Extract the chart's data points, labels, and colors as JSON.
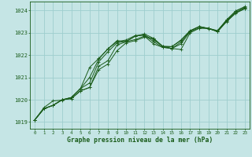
{
  "title": "Graphe pression niveau de la mer (hPa)",
  "background_color": "#c5e5e5",
  "grid_color": "#9ecece",
  "line_color": "#1a5c1a",
  "xlim": [
    -0.5,
    23.5
  ],
  "ylim": [
    1018.7,
    1024.4
  ],
  "yticks": [
    1019,
    1020,
    1021,
    1022,
    1023,
    1024
  ],
  "xticks": [
    0,
    1,
    2,
    3,
    4,
    5,
    6,
    7,
    8,
    9,
    10,
    11,
    12,
    13,
    14,
    15,
    16,
    17,
    18,
    19,
    20,
    21,
    22,
    23
  ],
  "series_smooth": [
    [
      1019.1,
      1019.6,
      1019.75,
      1020.0,
      1020.05,
      1020.4,
      1020.55,
      1021.35,
      1021.6,
      1022.2,
      1022.55,
      1022.65,
      1022.8,
      1022.75,
      1022.4,
      1022.3,
      1022.25,
      1023.0,
      1023.2,
      1023.2,
      1023.05,
      1023.5,
      1023.88,
      1024.08
    ],
    [
      1019.1,
      1019.6,
      1019.75,
      1020.0,
      1020.05,
      1020.4,
      1020.55,
      1021.5,
      1021.75,
      1022.45,
      1022.6,
      1022.7,
      1022.85,
      1022.5,
      1022.35,
      1022.3,
      1022.5,
      1023.05,
      1023.22,
      1023.2,
      1023.05,
      1023.52,
      1023.9,
      1024.1
    ],
    [
      1019.1,
      1019.6,
      1019.75,
      1020.0,
      1020.1,
      1020.5,
      1020.75,
      1021.7,
      1022.15,
      1022.55,
      1022.62,
      1022.85,
      1022.9,
      1022.6,
      1022.35,
      1022.3,
      1022.58,
      1023.08,
      1023.28,
      1023.2,
      1023.08,
      1023.55,
      1023.92,
      1024.12
    ],
    [
      1019.1,
      1019.6,
      1019.75,
      1020.0,
      1020.1,
      1020.5,
      1021.0,
      1021.82,
      1022.28,
      1022.6,
      1022.68,
      1022.88,
      1022.9,
      1022.68,
      1022.4,
      1022.38,
      1022.68,
      1023.1,
      1023.28,
      1023.2,
      1023.1,
      1023.58,
      1023.98,
      1024.15
    ]
  ],
  "series_wiggly": [
    1019.1,
    1019.65,
    1019.95,
    1019.98,
    1020.1,
    1020.5,
    1021.45,
    1021.85,
    1022.28,
    1022.65,
    1022.6,
    1022.85,
    1022.95,
    1022.75,
    1022.38,
    1022.38,
    1022.65,
    1023.08,
    1023.28,
    1023.18,
    1023.08,
    1023.58,
    1023.98,
    1024.18
  ]
}
